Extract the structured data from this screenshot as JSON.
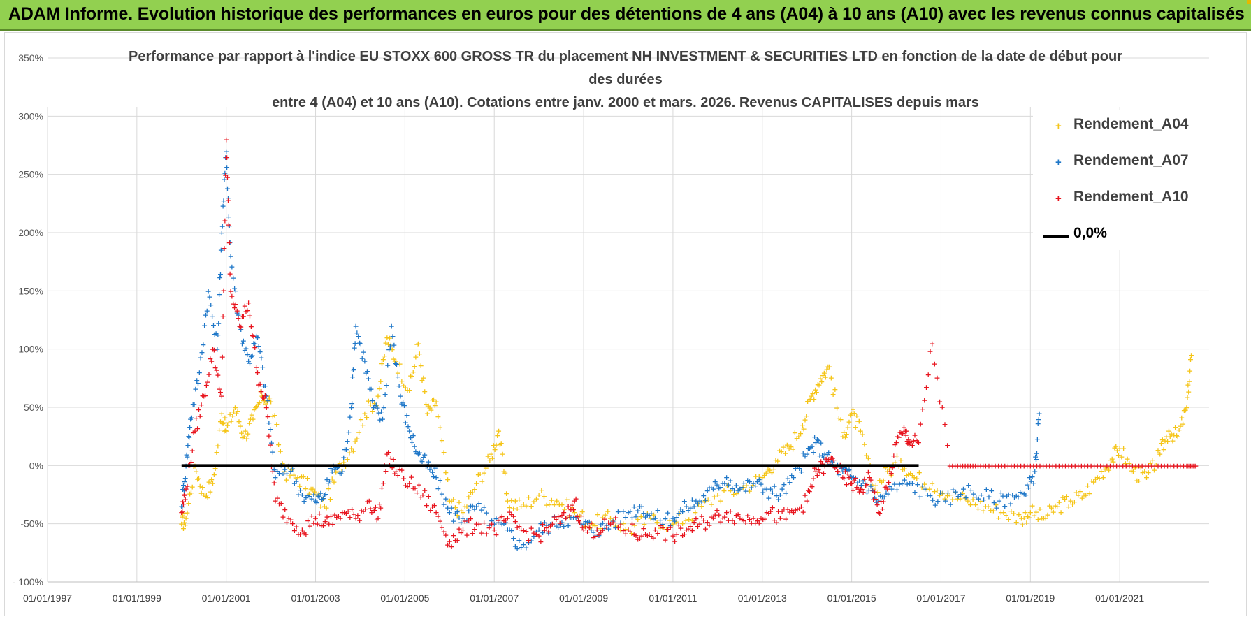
{
  "banner": {
    "text": "ADAM Informe. Evolution historique des performances en euros pour des détentions de 4 ans (A04) à 10 ans (A10) avec les revenus connus capitalisés"
  },
  "chart_data": {
    "type": "scatter",
    "title_lines": [
      "Performance par rapport à l'indice EU STOXX 600 GROSS TR  du placement NH INVESTMENT & SECURITIES LTD en fonction de la date de début pour",
      "des durées",
      "entre 4 (A04) et 10 ans (A10).  Cotations entre janv. 2000 et mars. 2026. Revenus CAPITALISES depuis mars"
    ],
    "xlabel": "",
    "ylabel": "",
    "xlim": [
      1997.0,
      2023.0
    ],
    "ylim": [
      -100,
      350
    ],
    "x_ticks": [
      {
        "value": 1997.0,
        "label": "01/01/1997"
      },
      {
        "value": 1999.0,
        "label": "01/01/1999"
      },
      {
        "value": 2001.0,
        "label": "01/01/2001"
      },
      {
        "value": 2003.0,
        "label": "01/01/2003"
      },
      {
        "value": 2005.0,
        "label": "01/01/2005"
      },
      {
        "value": 2007.0,
        "label": "01/01/2007"
      },
      {
        "value": 2009.0,
        "label": "01/01/2009"
      },
      {
        "value": 2011.0,
        "label": "01/01/2011"
      },
      {
        "value": 2013.0,
        "label": "01/01/2013"
      },
      {
        "value": 2015.0,
        "label": "01/01/2015"
      },
      {
        "value": 2017.0,
        "label": "01/01/2017"
      },
      {
        "value": 2019.0,
        "label": "01/01/2019"
      },
      {
        "value": 2021.0,
        "label": "01/01/2021"
      }
    ],
    "y_ticks": [
      {
        "value": 350,
        "label": "350%"
      },
      {
        "value": 300,
        "label": "300%"
      },
      {
        "value": 250,
        "label": "250%"
      },
      {
        "value": 200,
        "label": "200%"
      },
      {
        "value": 150,
        "label": "150%"
      },
      {
        "value": 100,
        "label": "100%"
      },
      {
        "value": 50,
        "label": "50%"
      },
      {
        "value": 0,
        "label": "0%"
      },
      {
        "value": -50,
        "label": "-50%"
      },
      {
        "value": -100,
        "label": "- 100%"
      }
    ],
    "grid": true,
    "legend_position": "top-right",
    "series": [
      {
        "name": "Rendement_A04",
        "color": "#f5c518",
        "marker": "+",
        "x": [
          2000.0,
          2000.1,
          2000.3,
          2000.5,
          2000.7,
          2000.9,
          2001.0,
          2001.2,
          2001.4,
          2001.6,
          2001.8,
          2002.0,
          2002.3,
          2002.6,
          2002.9,
          2003.2,
          2003.5,
          2003.8,
          2004.1,
          2004.4,
          2004.6,
          2004.8,
          2005.1,
          2005.3,
          2005.5,
          2005.7,
          2006.0,
          2006.3,
          2006.6,
          2006.9,
          2007.1,
          2007.3,
          2007.6,
          2008.0,
          2008.4,
          2008.8,
          2009.2,
          2009.6,
          2010.0,
          2010.5,
          2011.0,
          2011.5,
          2012.0,
          2012.5,
          2013.0,
          2013.3,
          2013.6,
          2013.9,
          2014.1,
          2014.3,
          2014.5,
          2014.8,
          2015.0,
          2015.2,
          2015.5,
          2015.8,
          2016.1,
          2016.4,
          2016.8,
          2017.2,
          2017.6,
          2018.0,
          2018.4,
          2018.8,
          2019.0,
          2019.3,
          2019.6,
          2019.9,
          2020.2,
          2020.5,
          2020.8,
          2021.0,
          2021.3,
          2021.6,
          2021.9,
          2022.1,
          2022.3,
          2022.5,
          2022.6
        ],
        "y": [
          -50,
          -45,
          0,
          -25,
          -15,
          45,
          30,
          50,
          25,
          40,
          60,
          55,
          -5,
          -10,
          -20,
          -35,
          -5,
          15,
          45,
          60,
          110,
          90,
          65,
          105,
          45,
          55,
          -30,
          -40,
          -15,
          5,
          30,
          -30,
          -35,
          -25,
          -30,
          -40,
          -50,
          -45,
          -55,
          -45,
          -50,
          -40,
          -25,
          -20,
          -10,
          5,
          15,
          35,
          60,
          75,
          85,
          25,
          45,
          30,
          -20,
          -5,
          5,
          -10,
          -15,
          -25,
          -30,
          -35,
          -40,
          -45,
          -40,
          -45,
          -35,
          -30,
          -25,
          -10,
          5,
          15,
          -5,
          -10,
          10,
          30,
          25,
          50,
          95
        ]
      },
      {
        "name": "Rendement_A07",
        "color": "#1f77c8",
        "marker": "+",
        "x": [
          2000.0,
          2000.1,
          2000.2,
          2000.4,
          2000.6,
          2000.8,
          2000.9,
          2001.0,
          2001.1,
          2001.3,
          2001.5,
          2001.7,
          2001.9,
          2002.1,
          2002.4,
          2002.7,
          2003.0,
          2003.2,
          2003.4,
          2003.6,
          2003.8,
          2003.9,
          2004.1,
          2004.3,
          2004.5,
          2004.7,
          2004.9,
          2005.1,
          2005.3,
          2005.5,
          2005.7,
          2006.0,
          2006.3,
          2006.6,
          2007.0,
          2007.3,
          2007.6,
          2008.0,
          2008.3,
          2008.6,
          2009.0,
          2009.3,
          2009.6,
          2010.0,
          2010.3,
          2010.6,
          2011.0,
          2011.3,
          2011.6,
          2011.9,
          2012.2,
          2012.5,
          2012.8,
          2013.1,
          2013.4,
          2013.7,
          2014.0,
          2014.2,
          2014.4,
          2014.6,
          2014.8,
          2015.0,
          2015.3,
          2015.6,
          2015.9,
          2016.3,
          2016.7,
          2017.1,
          2017.5,
          2017.9,
          2018.3,
          2018.6,
          2018.9,
          2019.1,
          2019.2
        ],
        "y": [
          -35,
          0,
          40,
          80,
          150,
          100,
          200,
          270,
          180,
          120,
          90,
          110,
          60,
          -10,
          0,
          -25,
          -30,
          -25,
          0,
          -5,
          50,
          120,
          90,
          50,
          40,
          120,
          60,
          30,
          10,
          0,
          -10,
          -40,
          -45,
          -35,
          -50,
          -55,
          -70,
          -55,
          -50,
          -45,
          -50,
          -55,
          -50,
          -40,
          -35,
          -45,
          -45,
          -35,
          -30,
          -20,
          -10,
          -20,
          -15,
          -20,
          -25,
          -10,
          10,
          20,
          10,
          0,
          -5,
          -10,
          -15,
          -30,
          -20,
          -15,
          -25,
          -30,
          -20,
          -25,
          -30,
          -25,
          -25,
          -5,
          45
        ]
      },
      {
        "name": "Rendement_A10",
        "color": "#e8141e",
        "marker": "+",
        "x": [
          2000.0,
          2000.1,
          2000.3,
          2000.5,
          2000.7,
          2000.9,
          2001.0,
          2001.1,
          2001.3,
          2001.5,
          2001.7,
          2001.9,
          2002.1,
          2002.4,
          2002.7,
          2003.0,
          2003.3,
          2003.6,
          2003.9,
          2004.2,
          2004.4,
          2004.6,
          2004.8,
          2005.1,
          2005.4,
          2005.7,
          2006.0,
          2006.3,
          2006.6,
          2007.0,
          2007.3,
          2007.6,
          2008.0,
          2008.3,
          2008.6,
          2008.8,
          2009.0,
          2009.3,
          2009.6,
          2010.0,
          2010.3,
          2010.6,
          2011.0,
          2011.3,
          2011.6,
          2011.9,
          2012.2,
          2012.5,
          2012.8,
          2013.1,
          2013.4,
          2013.7,
          2014.0,
          2014.2,
          2014.4,
          2014.6,
          2014.8,
          2015.0,
          2015.2,
          2015.4,
          2015.6,
          2015.8,
          2016.0,
          2016.2,
          2016.3,
          2016.5,
          2016.8,
          2017.2,
          2017.6,
          2018.0,
          2018.5,
          2019.0,
          2019.5,
          2020.0,
          2020.5,
          2021.0,
          2021.5,
          2022.0,
          2022.5,
          2022.7
        ],
        "y": [
          -40,
          -20,
          30,
          60,
          100,
          60,
          280,
          150,
          120,
          140,
          80,
          50,
          -30,
          -45,
          -55,
          -45,
          -50,
          -40,
          -45,
          -30,
          -45,
          10,
          -5,
          -15,
          -25,
          -40,
          -65,
          -55,
          -50,
          -55,
          -45,
          -55,
          -60,
          -50,
          -45,
          -30,
          -55,
          -55,
          -50,
          -55,
          -60,
          -55,
          -60,
          -55,
          -50,
          -45,
          -40,
          -45,
          -45,
          -40,
          -45,
          -40,
          -30,
          -5,
          0,
          5,
          -10,
          -15,
          -20,
          -10,
          -40,
          -20,
          20,
          30,
          20,
          20,
          105,
          0,
          0,
          0,
          0,
          0,
          0,
          0,
          0,
          0,
          0,
          0,
          0,
          0
        ]
      }
    ],
    "reference_line": {
      "name": "0,0%",
      "value": 0,
      "x_start": 2000.0,
      "x_end": 2016.5,
      "color": "#000000"
    }
  }
}
